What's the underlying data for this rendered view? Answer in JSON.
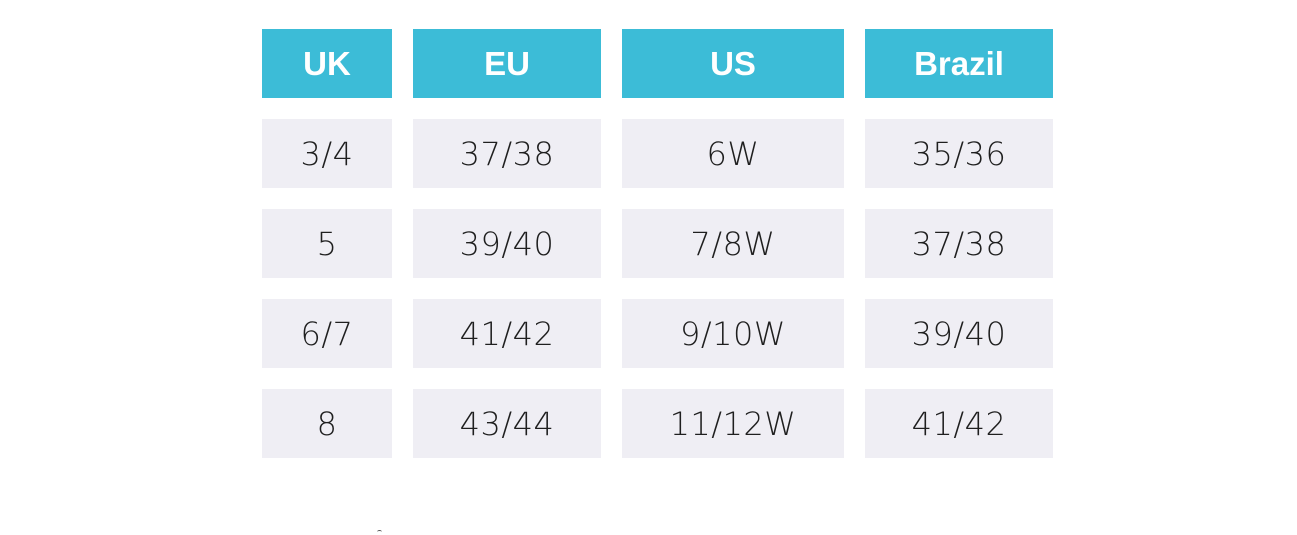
{
  "size_chart": {
    "headers": [
      "UK",
      "EU",
      "US",
      "Brazil"
    ],
    "rows": [
      [
        "3/4",
        "37/38",
        "6W",
        "35/36"
      ],
      [
        "5",
        "39/40",
        "7/8W",
        "37/38"
      ],
      [
        "6/7",
        "41/42",
        "9/10W",
        "39/40"
      ],
      [
        "8",
        "43/44",
        "11/12W",
        "41/42"
      ]
    ]
  },
  "colors": {
    "header_bg": "#3cbcd7",
    "header_text": "#ffffff",
    "cell_bg": "#efeef4",
    "cell_text": "#1f1f1f"
  }
}
